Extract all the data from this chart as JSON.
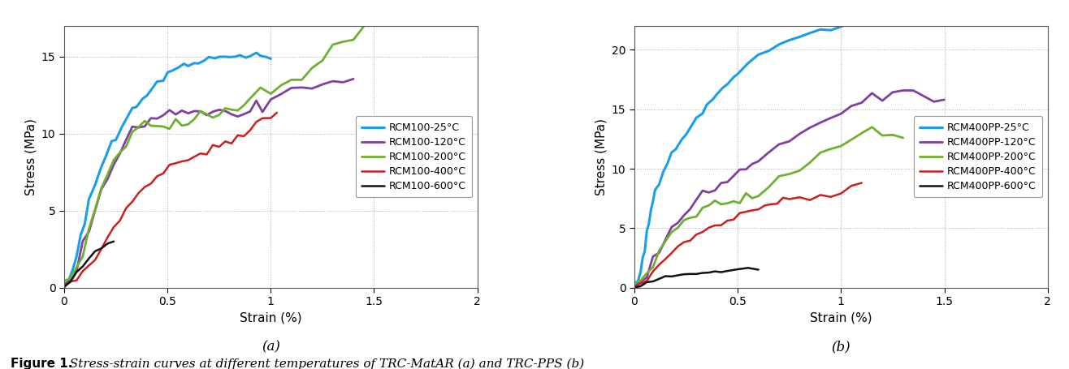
{
  "fig_width": 13.16,
  "fig_height": 4.55,
  "dpi": 100,
  "background_color": "#ffffff",
  "subplot_a": {
    "xlabel": "Strain (%)",
    "ylabel": "Stress (MPa)",
    "xlim": [
      0,
      2
    ],
    "ylim": [
      0,
      17
    ],
    "yticks": [
      0,
      5,
      10,
      15
    ],
    "xticks": [
      0,
      0.5,
      1.0,
      1.5,
      2.0
    ],
    "series": [
      {
        "label": "RCM100-25°C",
        "color": "#1B9EE8",
        "linewidth": 2.2,
        "x": [
          0.0,
          0.02,
          0.04,
          0.06,
          0.08,
          0.1,
          0.12,
          0.15,
          0.18,
          0.2,
          0.23,
          0.25,
          0.28,
          0.3,
          0.33,
          0.35,
          0.38,
          0.4,
          0.43,
          0.45,
          0.48,
          0.5,
          0.53,
          0.55,
          0.58,
          0.6,
          0.63,
          0.65,
          0.68,
          0.7,
          0.73,
          0.75,
          0.78,
          0.8,
          0.83,
          0.85,
          0.88,
          0.9,
          0.93,
          0.95,
          0.98,
          1.0
        ],
        "y": [
          0.0,
          0.5,
          1.2,
          2.2,
          3.3,
          4.5,
          5.5,
          6.8,
          7.8,
          8.5,
          9.3,
          9.9,
          10.5,
          11.0,
          11.5,
          11.9,
          12.3,
          12.6,
          13.0,
          13.3,
          13.6,
          13.8,
          14.0,
          14.2,
          14.4,
          14.5,
          14.6,
          14.7,
          14.8,
          14.9,
          15.0,
          15.05,
          15.1,
          15.1,
          15.1,
          15.1,
          15.1,
          15.0,
          15.0,
          14.95,
          15.0,
          15.0
        ]
      },
      {
        "label": "RCM100-120°C",
        "color": "#8040A0",
        "linewidth": 2.0,
        "x": [
          0.0,
          0.03,
          0.06,
          0.09,
          0.12,
          0.15,
          0.18,
          0.21,
          0.24,
          0.27,
          0.3,
          0.33,
          0.36,
          0.39,
          0.42,
          0.45,
          0.48,
          0.51,
          0.54,
          0.57,
          0.6,
          0.63,
          0.66,
          0.69,
          0.72,
          0.75,
          0.78,
          0.81,
          0.84,
          0.87,
          0.9,
          0.93,
          0.96,
          1.0,
          1.05,
          1.1,
          1.15,
          1.2,
          1.25,
          1.3,
          1.35,
          1.4
        ],
        "y": [
          0.0,
          0.6,
          1.5,
          2.7,
          4.0,
          5.2,
          6.3,
          7.3,
          8.2,
          8.9,
          9.5,
          10.0,
          10.4,
          10.7,
          10.9,
          11.1,
          11.2,
          11.3,
          11.4,
          11.5,
          11.5,
          11.5,
          11.4,
          11.4,
          11.5,
          11.6,
          11.6,
          11.5,
          11.4,
          11.3,
          11.5,
          11.7,
          11.9,
          12.2,
          12.5,
          12.7,
          12.9,
          13.1,
          13.2,
          13.3,
          13.4,
          13.4
        ]
      },
      {
        "label": "RCM100-200°C",
        "color": "#70B030",
        "linewidth": 2.0,
        "x": [
          0.0,
          0.03,
          0.06,
          0.09,
          0.12,
          0.15,
          0.18,
          0.21,
          0.24,
          0.27,
          0.3,
          0.33,
          0.36,
          0.39,
          0.42,
          0.45,
          0.48,
          0.51,
          0.54,
          0.57,
          0.6,
          0.63,
          0.66,
          0.69,
          0.72,
          0.75,
          0.78,
          0.81,
          0.84,
          0.87,
          0.9,
          0.95,
          1.0,
          1.05,
          1.1,
          1.15,
          1.2,
          1.25,
          1.3,
          1.35,
          1.4,
          1.45
        ],
        "y": [
          0.0,
          0.5,
          1.3,
          2.5,
          3.9,
          5.2,
          6.5,
          7.5,
          8.3,
          8.9,
          9.5,
          9.9,
          10.2,
          10.4,
          10.5,
          10.6,
          10.6,
          10.7,
          10.7,
          10.8,
          10.9,
          11.0,
          11.1,
          11.2,
          11.3,
          11.4,
          11.5,
          11.6,
          11.7,
          11.9,
          12.1,
          12.5,
          12.9,
          13.3,
          13.7,
          14.1,
          14.5,
          15.0,
          15.5,
          16.0,
          16.5,
          16.8
        ]
      },
      {
        "label": "RCM100-400°C",
        "color": "#CC2020",
        "linewidth": 1.8,
        "x": [
          0.0,
          0.03,
          0.06,
          0.09,
          0.12,
          0.15,
          0.18,
          0.21,
          0.24,
          0.27,
          0.3,
          0.33,
          0.36,
          0.39,
          0.42,
          0.45,
          0.48,
          0.51,
          0.54,
          0.57,
          0.6,
          0.63,
          0.66,
          0.69,
          0.72,
          0.75,
          0.78,
          0.81,
          0.84,
          0.87,
          0.9,
          0.93,
          0.96,
          1.0,
          1.03
        ],
        "y": [
          0.2,
          0.35,
          0.6,
          1.0,
          1.5,
          2.0,
          2.6,
          3.2,
          3.9,
          4.5,
          5.1,
          5.6,
          6.1,
          6.5,
          6.9,
          7.2,
          7.5,
          7.8,
          8.0,
          8.2,
          8.4,
          8.5,
          8.7,
          8.8,
          9.0,
          9.1,
          9.3,
          9.5,
          9.7,
          10.0,
          10.3,
          10.7,
          11.0,
          11.3,
          11.5
        ]
      },
      {
        "label": "RCM100-600°C",
        "color": "#111111",
        "linewidth": 1.8,
        "x": [
          0.0,
          0.03,
          0.06,
          0.09,
          0.12,
          0.15,
          0.18,
          0.21,
          0.24
        ],
        "y": [
          0.05,
          0.4,
          0.9,
          1.4,
          1.9,
          2.3,
          2.6,
          2.9,
          3.0
        ]
      }
    ]
  },
  "subplot_b": {
    "xlabel": "Strain (%)",
    "ylabel": "Stress (MPa)",
    "xlim": [
      0,
      2
    ],
    "ylim": [
      0,
      22
    ],
    "yticks": [
      0,
      5,
      10,
      15,
      20
    ],
    "xticks": [
      0,
      0.5,
      1.0,
      1.5,
      2.0
    ],
    "series": [
      {
        "label": "RCM400PP-25°C",
        "color": "#1B9EE8",
        "linewidth": 2.2,
        "x": [
          0.0,
          0.01,
          0.02,
          0.03,
          0.04,
          0.05,
          0.06,
          0.07,
          0.08,
          0.09,
          0.1,
          0.12,
          0.14,
          0.16,
          0.18,
          0.2,
          0.23,
          0.25,
          0.28,
          0.3,
          0.33,
          0.35,
          0.38,
          0.4,
          0.43,
          0.45,
          0.48,
          0.5,
          0.55,
          0.6,
          0.65,
          0.7,
          0.75,
          0.8,
          0.85,
          0.9,
          0.95,
          1.0,
          1.05,
          1.1,
          1.15
        ],
        "y": [
          0.0,
          0.3,
          0.8,
          1.5,
          2.4,
          3.4,
          4.5,
          5.5,
          6.5,
          7.3,
          8.0,
          9.0,
          9.8,
          10.5,
          11.2,
          11.8,
          12.5,
          13.0,
          13.7,
          14.2,
          14.8,
          15.2,
          15.7,
          16.2,
          16.7,
          17.2,
          17.7,
          18.1,
          18.9,
          19.5,
          20.0,
          20.5,
          20.9,
          21.2,
          21.5,
          21.7,
          21.8,
          21.9,
          22.0,
          22.2,
          22.2
        ]
      },
      {
        "label": "RCM400PP-120°C",
        "color": "#8040A0",
        "linewidth": 2.0,
        "x": [
          0.0,
          0.03,
          0.06,
          0.09,
          0.12,
          0.15,
          0.18,
          0.21,
          0.24,
          0.27,
          0.3,
          0.33,
          0.36,
          0.39,
          0.42,
          0.45,
          0.48,
          0.51,
          0.54,
          0.57,
          0.6,
          0.65,
          0.7,
          0.75,
          0.8,
          0.85,
          0.9,
          0.95,
          1.0,
          1.05,
          1.1,
          1.15,
          1.2,
          1.25,
          1.3,
          1.35,
          1.4,
          1.45,
          1.5
        ],
        "y": [
          0.0,
          0.5,
          1.3,
          2.3,
          3.3,
          4.2,
          5.0,
          5.7,
          6.3,
          6.8,
          7.3,
          7.7,
          8.0,
          8.4,
          8.7,
          9.0,
          9.4,
          9.7,
          10.1,
          10.4,
          10.8,
          11.4,
          12.0,
          12.5,
          13.0,
          13.5,
          14.0,
          14.5,
          14.9,
          15.3,
          15.6,
          15.9,
          16.2,
          16.4,
          16.5,
          16.3,
          16.0,
          15.8,
          15.8
        ]
      },
      {
        "label": "RCM400PP-200°C",
        "color": "#70B030",
        "linewidth": 2.0,
        "x": [
          0.0,
          0.03,
          0.06,
          0.09,
          0.12,
          0.15,
          0.18,
          0.21,
          0.24,
          0.27,
          0.3,
          0.33,
          0.36,
          0.39,
          0.42,
          0.45,
          0.48,
          0.51,
          0.54,
          0.57,
          0.6,
          0.65,
          0.7,
          0.75,
          0.8,
          0.85,
          0.9,
          0.95,
          1.0,
          1.05,
          1.1,
          1.15,
          1.2,
          1.25,
          1.3
        ],
        "y": [
          0.0,
          0.5,
          1.2,
          2.2,
          3.2,
          4.0,
          4.7,
          5.2,
          5.7,
          6.0,
          6.3,
          6.5,
          6.7,
          6.9,
          7.0,
          7.2,
          7.4,
          7.5,
          7.7,
          7.8,
          8.0,
          8.5,
          9.0,
          9.5,
          10.1,
          10.7,
          11.2,
          11.7,
          12.1,
          12.5,
          12.8,
          13.0,
          13.1,
          13.0,
          12.8
        ]
      },
      {
        "label": "RCM400PP-400°C",
        "color": "#CC2020",
        "linewidth": 1.8,
        "x": [
          0.0,
          0.03,
          0.06,
          0.09,
          0.12,
          0.15,
          0.18,
          0.21,
          0.24,
          0.27,
          0.3,
          0.33,
          0.36,
          0.39,
          0.42,
          0.45,
          0.48,
          0.51,
          0.54,
          0.57,
          0.6,
          0.63,
          0.66,
          0.69,
          0.72,
          0.75,
          0.8,
          0.85,
          0.9,
          0.95,
          1.0,
          1.05,
          1.1
        ],
        "y": [
          0.1,
          0.3,
          0.7,
          1.3,
          2.0,
          2.6,
          3.0,
          3.4,
          3.8,
          4.1,
          4.4,
          4.7,
          5.0,
          5.2,
          5.4,
          5.6,
          5.8,
          6.1,
          6.3,
          6.5,
          6.7,
          6.9,
          7.0,
          7.2,
          7.3,
          7.4,
          7.4,
          7.5,
          7.6,
          7.8,
          8.0,
          8.5,
          8.8
        ]
      },
      {
        "label": "RCM400PP-600°C",
        "color": "#111111",
        "linewidth": 1.8,
        "x": [
          0.0,
          0.03,
          0.06,
          0.09,
          0.12,
          0.15,
          0.18,
          0.21,
          0.24,
          0.27,
          0.3,
          0.33,
          0.36,
          0.39,
          0.42,
          0.45,
          0.5,
          0.55,
          0.6
        ],
        "y": [
          0.0,
          0.15,
          0.35,
          0.55,
          0.75,
          0.9,
          1.0,
          1.08,
          1.13,
          1.18,
          1.22,
          1.26,
          1.3,
          1.35,
          1.4,
          1.45,
          1.5,
          1.58,
          1.6
        ]
      }
    ]
  },
  "caption_bold": "Figure 1.",
  "caption_italic": "  Stress-strain curves at different temperatures of TRC-MatAR (a) and TRC-PPS (b)",
  "caption_fontsize": 11
}
